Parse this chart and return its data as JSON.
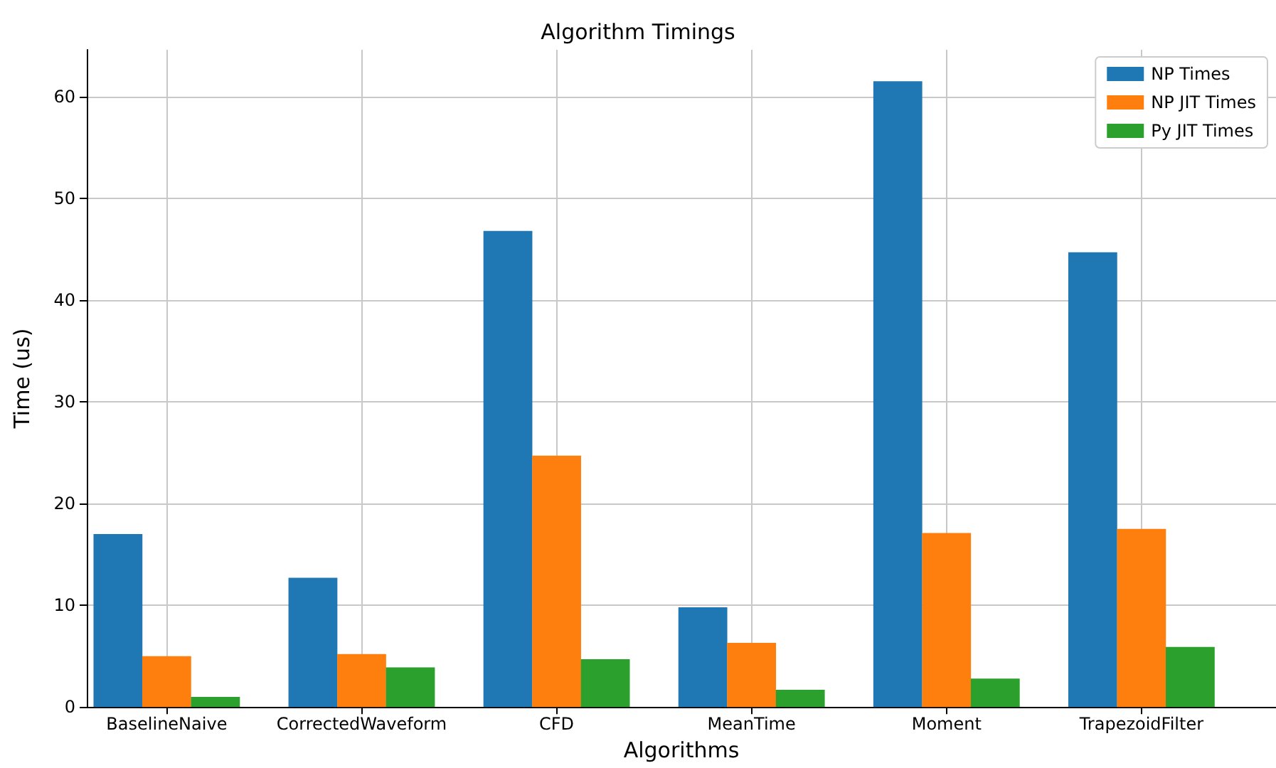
{
  "chart_data": {
    "type": "bar",
    "title": "Algorithm Timings",
    "xlabel": "Algorithms",
    "ylabel": "Time (us)",
    "categories": [
      "BaselineNaive",
      "CorrectedWaveform",
      "CFD",
      "MeanTime",
      "Moment",
      "TrapezoidFilter"
    ],
    "series": [
      {
        "name": "NP Times",
        "color": "#1f77b4",
        "values": [
          17.0,
          12.7,
          46.8,
          9.8,
          61.5,
          44.7
        ]
      },
      {
        "name": "NP JIT Times",
        "color": "#ff7f0e",
        "values": [
          5.0,
          5.2,
          24.7,
          6.3,
          17.1,
          17.5
        ]
      },
      {
        "name": "Py JIT Times",
        "color": "#2ca02c",
        "values": [
          1.0,
          3.9,
          4.7,
          1.7,
          2.8,
          5.9
        ]
      }
    ],
    "ylim": [
      0,
      64.6
    ],
    "yticks": [
      0,
      10,
      20,
      30,
      40,
      50,
      60
    ],
    "grid": true,
    "legend": "top right"
  }
}
